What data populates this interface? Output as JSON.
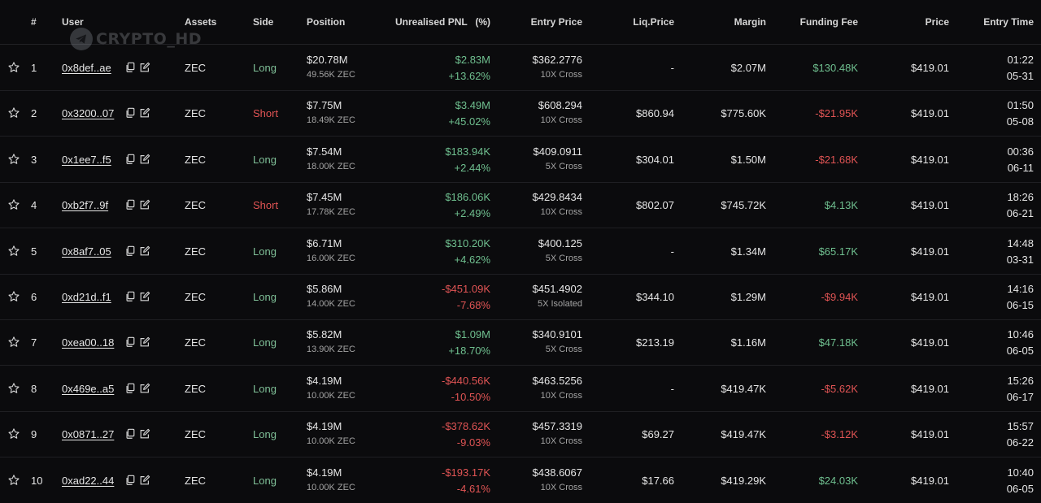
{
  "header": {
    "rank": "#",
    "user": "User",
    "assets": "Assets",
    "side": "Side",
    "position": "Position",
    "pnl": "Unrealised PNL",
    "pnl_pct": "(%)",
    "entry_price": "Entry Price",
    "liq_price": "Liq.Price",
    "margin": "Margin",
    "funding_fee": "Funding Fee",
    "price": "Price",
    "entry_time": "Entry Time"
  },
  "watermark": {
    "text": "CRYPTO_HD",
    "icon": "telegram-icon"
  },
  "colors": {
    "positive": "#6fbf8f",
    "negative": "#e05454",
    "long": "#7fbf97",
    "short": "#e05454",
    "background": "#0b0b0d"
  },
  "rows": [
    {
      "rank": "1",
      "user": "0x8def..ae",
      "asset": "ZEC",
      "side": "Long",
      "side_type": "long",
      "position": "$20.78M",
      "position_sub": "49.56K ZEC",
      "pnl": "$2.83M",
      "pnl_pct": "+13.62%",
      "pnl_type": "pos",
      "entry": "$362.2776",
      "entry_sub": "10X Cross",
      "liq": "-",
      "margin": "$2.07M",
      "funding": "$130.48K",
      "funding_type": "pos",
      "price": "$419.01",
      "time": "01:22",
      "date": "05-31"
    },
    {
      "rank": "2",
      "user": "0x3200..07",
      "asset": "ZEC",
      "side": "Short",
      "side_type": "short",
      "position": "$7.75M",
      "position_sub": "18.49K ZEC",
      "pnl": "$3.49M",
      "pnl_pct": "+45.02%",
      "pnl_type": "pos",
      "entry": "$608.294",
      "entry_sub": "10X Cross",
      "liq": "$860.94",
      "margin": "$775.60K",
      "funding": "-$21.95K",
      "funding_type": "neg",
      "price": "$419.01",
      "time": "01:50",
      "date": "05-08"
    },
    {
      "rank": "3",
      "user": "0x1ee7..f5",
      "asset": "ZEC",
      "side": "Long",
      "side_type": "long",
      "position": "$7.54M",
      "position_sub": "18.00K ZEC",
      "pnl": "$183.94K",
      "pnl_pct": "+2.44%",
      "pnl_type": "pos",
      "entry": "$409.0911",
      "entry_sub": "5X Cross",
      "liq": "$304.01",
      "margin": "$1.50M",
      "funding": "-$21.68K",
      "funding_type": "neg",
      "price": "$419.01",
      "time": "00:36",
      "date": "06-11"
    },
    {
      "rank": "4",
      "user": "0xb2f7..9f",
      "asset": "ZEC",
      "side": "Short",
      "side_type": "short",
      "position": "$7.45M",
      "position_sub": "17.78K ZEC",
      "pnl": "$186.06K",
      "pnl_pct": "+2.49%",
      "pnl_type": "pos",
      "entry": "$429.8434",
      "entry_sub": "10X Cross",
      "liq": "$802.07",
      "margin": "$745.72K",
      "funding": "$4.13K",
      "funding_type": "pos",
      "price": "$419.01",
      "time": "18:26",
      "date": "06-21"
    },
    {
      "rank": "5",
      "user": "0x8af7..05",
      "asset": "ZEC",
      "side": "Long",
      "side_type": "long",
      "position": "$6.71M",
      "position_sub": "16.00K ZEC",
      "pnl": "$310.20K",
      "pnl_pct": "+4.62%",
      "pnl_type": "pos",
      "entry": "$400.125",
      "entry_sub": "5X Cross",
      "liq": "-",
      "margin": "$1.34M",
      "funding": "$65.17K",
      "funding_type": "pos",
      "price": "$419.01",
      "time": "14:48",
      "date": "03-31"
    },
    {
      "rank": "6",
      "user": "0xd21d..f1",
      "asset": "ZEC",
      "side": "Long",
      "side_type": "long",
      "position": "$5.86M",
      "position_sub": "14.00K ZEC",
      "pnl": "-$451.09K",
      "pnl_pct": "-7.68%",
      "pnl_type": "neg",
      "entry": "$451.4902",
      "entry_sub": "5X Isolated",
      "liq": "$344.10",
      "margin": "$1.29M",
      "funding": "-$9.94K",
      "funding_type": "neg",
      "price": "$419.01",
      "time": "14:16",
      "date": "06-15"
    },
    {
      "rank": "7",
      "user": "0xea00..18",
      "asset": "ZEC",
      "side": "Long",
      "side_type": "long",
      "position": "$5.82M",
      "position_sub": "13.90K ZEC",
      "pnl": "$1.09M",
      "pnl_pct": "+18.70%",
      "pnl_type": "pos",
      "entry": "$340.9101",
      "entry_sub": "5X Cross",
      "liq": "$213.19",
      "margin": "$1.16M",
      "funding": "$47.18K",
      "funding_type": "pos",
      "price": "$419.01",
      "time": "10:46",
      "date": "06-05"
    },
    {
      "rank": "8",
      "user": "0x469e..a5",
      "asset": "ZEC",
      "side": "Long",
      "side_type": "long",
      "position": "$4.19M",
      "position_sub": "10.00K ZEC",
      "pnl": "-$440.56K",
      "pnl_pct": "-10.50%",
      "pnl_type": "neg",
      "entry": "$463.5256",
      "entry_sub": "10X Cross",
      "liq": "-",
      "margin": "$419.47K",
      "funding": "-$5.62K",
      "funding_type": "neg",
      "price": "$419.01",
      "time": "15:26",
      "date": "06-17"
    },
    {
      "rank": "9",
      "user": "0x0871..27",
      "asset": "ZEC",
      "side": "Long",
      "side_type": "long",
      "position": "$4.19M",
      "position_sub": "10.00K ZEC",
      "pnl": "-$378.62K",
      "pnl_pct": "-9.03%",
      "pnl_type": "neg",
      "entry": "$457.3319",
      "entry_sub": "10X Cross",
      "liq": "$69.27",
      "margin": "$419.47K",
      "funding": "-$3.12K",
      "funding_type": "neg",
      "price": "$419.01",
      "time": "15:57",
      "date": "06-22"
    },
    {
      "rank": "10",
      "user": "0xad22..44",
      "asset": "ZEC",
      "side": "Long",
      "side_type": "long",
      "position": "$4.19M",
      "position_sub": "10.00K ZEC",
      "pnl": "-$193.17K",
      "pnl_pct": "-4.61%",
      "pnl_type": "neg",
      "entry": "$438.6067",
      "entry_sub": "10X Cross",
      "liq": "$17.66",
      "margin": "$419.29K",
      "funding": "$24.03K",
      "funding_type": "pos",
      "price": "$419.01",
      "time": "10:40",
      "date": "06-05"
    }
  ]
}
